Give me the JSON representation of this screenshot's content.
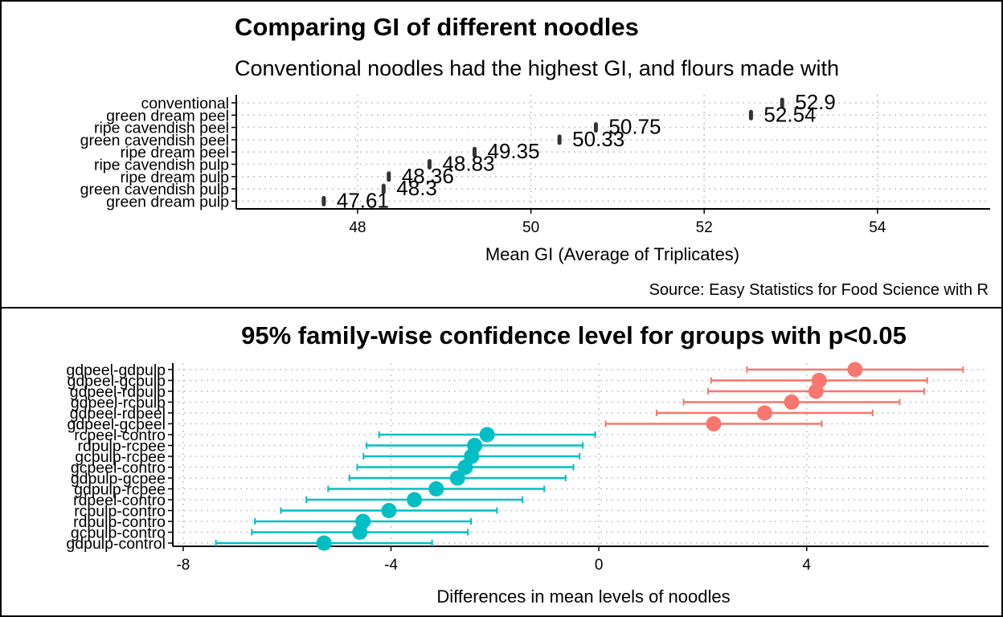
{
  "chart_data": [
    {
      "type": "dot",
      "title": "Comparing GI of different noodles",
      "subtitle": "Conventional noodles had the highest GI, and flours made with",
      "caption": "Source: Easy Statistics for Food Science with R",
      "xlabel": "Mean GI (Average of Triplicates)",
      "ylabel": "",
      "xlim": [
        46.6,
        55.3
      ],
      "xticks": [
        48,
        50,
        52,
        54
      ],
      "grid": true,
      "categories": [
        "conventional",
        "green dream peel",
        "ripe cavendish peel",
        "green cavendish peel",
        "ripe dream peel",
        "ripe cavendish pulp",
        "ripe dream pulp",
        "green cavendish pulp",
        "green dream pulp"
      ],
      "values": [
        52.9,
        52.54,
        50.75,
        50.33,
        49.35,
        48.83,
        48.36,
        48.3,
        47.61
      ],
      "data_labels": [
        "52.9",
        "52.54",
        "50.75",
        "50.33",
        "49.35",
        "48.83",
        "48.36",
        "48.3",
        "47.61"
      ],
      "point_color": "#333333"
    },
    {
      "type": "errorbar",
      "title": "95% family-wise confidence level for groups with p<0.05",
      "xlabel": "Differences in mean levels of noodles",
      "ylabel": "",
      "xlim": [
        -8.2,
        7.5
      ],
      "xticks": [
        -8,
        -4,
        0,
        4
      ],
      "grid": true,
      "categories": [
        "gdpeel-gdpulp",
        "gdpeel-gcpulp",
        "gdpeel-rdpulp",
        "gdpeel-rcpulp",
        "gdpeel-rdpeel",
        "gdpeel-gcpeel",
        "rcpeel-contro",
        "rdpulp-rcpee",
        "gcpulp-rcpee",
        "gcpeel-contro",
        "gdpulp-gcpee",
        "gdpulp-rcpee",
        "rdpeel-contro",
        "rcpulp-contro",
        "rdpulp-contro",
        "gcpulp-contro",
        "gdpulp-control"
      ],
      "series": [
        {
          "color": "#F8766D",
          "estimate": [
            4.93,
            4.24,
            4.18,
            3.71,
            3.19,
            2.21,
            null,
            null,
            null,
            null,
            null,
            null,
            null,
            null,
            null,
            null,
            null
          ],
          "lower": [
            2.85,
            2.16,
            2.1,
            1.63,
            1.11,
            0.13,
            null,
            null,
            null,
            null,
            null,
            null,
            null,
            null,
            null,
            null,
            null
          ],
          "upper": [
            7.01,
            6.32,
            6.26,
            5.79,
            5.27,
            4.29,
            null,
            null,
            null,
            null,
            null,
            null,
            null,
            null,
            null,
            null,
            null
          ]
        },
        {
          "color": "#00BFC4",
          "estimate": [
            null,
            null,
            null,
            null,
            null,
            null,
            -2.15,
            -2.39,
            -2.45,
            -2.57,
            -2.72,
            -3.13,
            -3.55,
            -4.04,
            -4.54,
            -4.6,
            -5.29
          ],
          "lower": [
            null,
            null,
            null,
            null,
            null,
            null,
            -4.23,
            -4.47,
            -4.53,
            -4.65,
            -4.8,
            -5.21,
            -5.63,
            -6.12,
            -6.62,
            -6.68,
            -7.37
          ],
          "upper": [
            null,
            null,
            null,
            null,
            null,
            null,
            -0.07,
            -0.31,
            -0.37,
            -0.49,
            -0.64,
            -1.05,
            -1.47,
            -1.96,
            -2.46,
            -2.52,
            -3.21
          ]
        }
      ]
    }
  ]
}
